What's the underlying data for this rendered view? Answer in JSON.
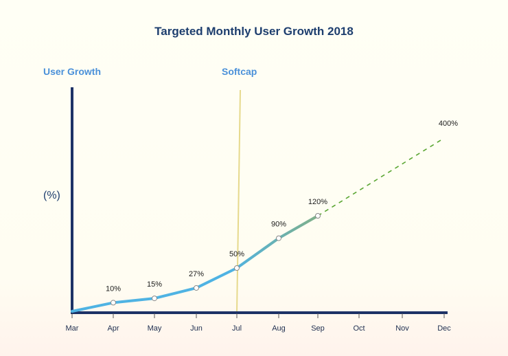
{
  "chart_data": {
    "type": "line",
    "title": "Targeted Monthly User Growth 2018",
    "ylabel": "User Growth",
    "unit_label": "(%)",
    "marker_label": "Softcap",
    "marker_x": "Jul",
    "categories": [
      "Mar",
      "Apr",
      "May",
      "Jun",
      "Jul",
      "Aug",
      "Sep",
      "Oct",
      "Nov",
      "Dec"
    ],
    "series": [
      {
        "x": [
          "Mar",
          "Apr",
          "May",
          "Jun",
          "Jul",
          "Aug",
          "Sep"
        ],
        "values": [
          0,
          10,
          15,
          27,
          50,
          90,
          120
        ],
        "labels": [
          "",
          "10%",
          "15%",
          "27%",
          "50%",
          "90%",
          "120%"
        ],
        "style": "solid"
      },
      {
        "x": [
          "Sep",
          "Dec"
        ],
        "values": [
          120,
          400
        ],
        "labels": [
          "",
          "400%"
        ],
        "style": "dashed"
      }
    ],
    "colors": {
      "line_start": "#4fb3e3",
      "line_end": "#7fb08a",
      "projection": "#5aa632",
      "softcap": "#e6d98c",
      "axis": "#1d3266"
    }
  }
}
